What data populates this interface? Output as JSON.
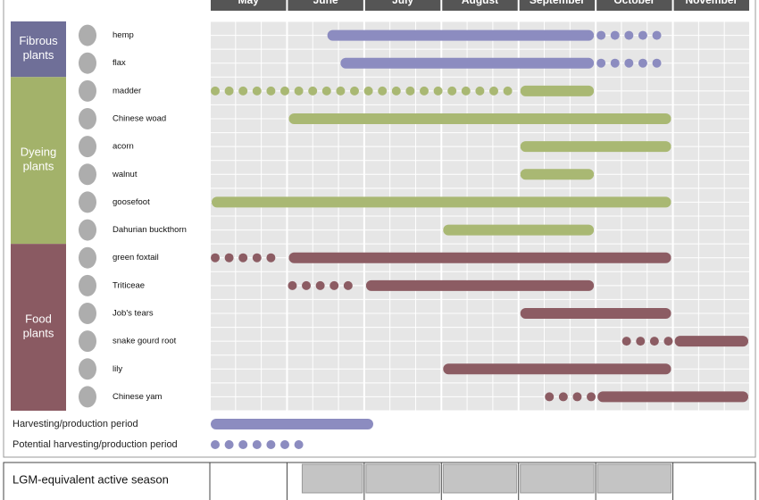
{
  "chart_data": {
    "type": "gantt",
    "months": [
      "May",
      "June",
      "July",
      "August",
      "September",
      "October",
      "November"
    ],
    "xlim": [
      0,
      7
    ],
    "groups": [
      {
        "name": "Fibrous plants",
        "color": "#6f6f98",
        "bar_color": "#8c8cc0",
        "rows": [
          {
            "name": "hemp",
            "harvest": [
              1.5,
              5
            ],
            "potential": [
              5,
              6
            ]
          },
          {
            "name": "flax",
            "harvest": [
              1.67,
              5
            ],
            "potential": [
              5,
              6
            ]
          }
        ]
      },
      {
        "name": "Dyeing plants",
        "color": "#a3b26a",
        "bar_color": "#a9b873",
        "rows": [
          {
            "name": "madder",
            "harvest": [
              4,
              5
            ],
            "potential": [
              0,
              4
            ]
          },
          {
            "name": "Chinese woad",
            "harvest": [
              1,
              6
            ]
          },
          {
            "name": "acorn",
            "harvest": [
              4,
              6
            ]
          },
          {
            "name": "walnut",
            "harvest": [
              4,
              5
            ]
          },
          {
            "name": "goosefoot",
            "harvest": [
              0,
              6
            ]
          },
          {
            "name": "Dahurian buckthorn",
            "harvest": [
              3,
              5
            ]
          }
        ]
      },
      {
        "name": "Food plants",
        "color": "#8a5a62",
        "bar_color": "#8c5c63",
        "rows": [
          {
            "name": "green foxtail",
            "harvest": [
              1,
              6
            ],
            "potential": [
              0,
              1
            ]
          },
          {
            "name": "Triticeae",
            "harvest": [
              2,
              5
            ],
            "potential": [
              1,
              2
            ]
          },
          {
            "name": "Job's tears",
            "harvest": [
              4,
              6
            ]
          },
          {
            "name": "snake gourd root",
            "harvest": [
              6,
              7
            ],
            "potential": [
              5.33,
              6
            ]
          },
          {
            "name": "lily",
            "harvest": [
              3,
              6
            ]
          },
          {
            "name": "Chinese yam",
            "harvest": [
              5,
              7
            ],
            "potential": [
              4.33,
              5
            ]
          }
        ]
      }
    ],
    "legend": {
      "harvest": "Harvesting/production period",
      "potential": "Potential harvesting/production period"
    },
    "lgm": {
      "label": "LGM-equivalent active season",
      "start": 1,
      "end": 6
    }
  }
}
